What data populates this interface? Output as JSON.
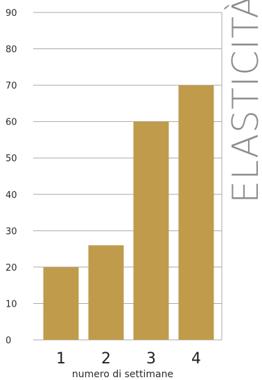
{
  "chart_data": {
    "type": "bar",
    "title": "ELASTICITÀ",
    "xlabel": "numero di settimane",
    "ylabel": "",
    "categories": [
      "1",
      "2",
      "3",
      "4"
    ],
    "values": [
      20,
      26,
      60,
      70
    ],
    "ylim": [
      0,
      90
    ],
    "yticks": [
      "0",
      "10",
      "20",
      "30",
      "40",
      "50",
      "60",
      "70",
      "80",
      "90"
    ],
    "grid": true,
    "bar_color": "#bf9b4b",
    "grid_color": "#a8a8a8",
    "title_color": "#8c8c8c"
  }
}
